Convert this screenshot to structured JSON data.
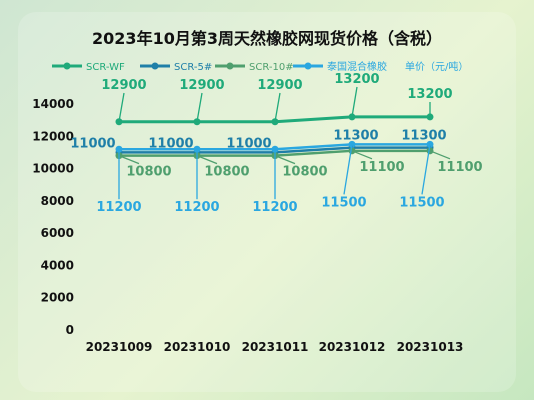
{
  "chart_data": {
    "type": "line",
    "title": "2023年10月第3周天然橡胶网现货价格（含税）",
    "categories": [
      "20231009",
      "20231010",
      "20231011",
      "20231012",
      "20231013"
    ],
    "ylim": [
      0,
      14000
    ],
    "yticks": [
      0,
      2000,
      4000,
      6000,
      8000,
      10000,
      12000,
      14000
    ],
    "grid": false,
    "legend_position": "top",
    "unit_label": "单价（元/吨）",
    "series": [
      {
        "name": "SCR-WF",
        "values": [
          12900,
          12900,
          12900,
          13200,
          13200
        ],
        "color": "#1faa7a"
      },
      {
        "name": "SCR-5#",
        "values": [
          11000,
          11000,
          11000,
          11300,
          11300
        ],
        "color": "#1f7fa8"
      },
      {
        "name": "SCR-10#",
        "values": [
          10800,
          10800,
          10800,
          11100,
          11100
        ],
        "color": "#4f9f6e"
      },
      {
        "name": "泰国混合橡胶",
        "values": [
          11200,
          11200,
          11200,
          11500,
          11500
        ],
        "color": "#2aa7e0"
      }
    ]
  }
}
